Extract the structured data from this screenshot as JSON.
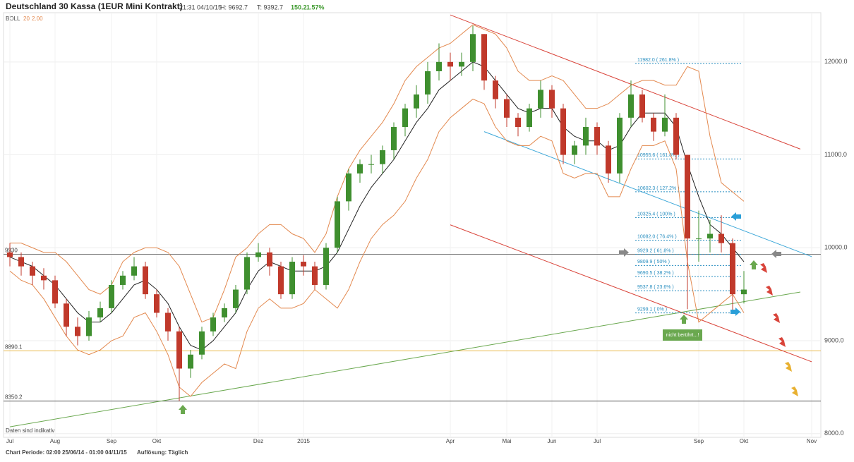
{
  "chart_data": {
    "type": "candlestick",
    "title": "Deutschland 30 Kassa (1EUR Mini Kontrakt)",
    "header": {
      "time": "21:31 04/10/15",
      "high": "H: 9692.7",
      "low": "T: 9392.7",
      "change": "150.2",
      "change_pct": "1.57%"
    },
    "footer": {
      "period": "Chart Periode: 02:00 25/06/14 - 01:00 04/11/15",
      "resolution": "Auflösung: Täglich"
    },
    "note": "Daten sind indikativ",
    "categories": [
      "Jul",
      null,
      null,
      null,
      "Aug",
      null,
      null,
      null,
      null,
      "Sep",
      null,
      null,
      null,
      "Okt",
      null,
      null,
      null,
      null,
      null,
      null,
      null,
      null,
      "Dez",
      null,
      null,
      null,
      "2015",
      null,
      null,
      null,
      null,
      null,
      null,
      null,
      null,
      null,
      null,
      null,
      null,
      "Apr",
      null,
      null,
      null,
      null,
      "Mai",
      null,
      null,
      null,
      "Jun",
      null,
      null,
      null,
      "Jul",
      null,
      null,
      null,
      null,
      null,
      null,
      null,
      null,
      "Sep",
      null,
      null,
      null,
      "Okt",
      null,
      null,
      null,
      null,
      null,
      "Nov"
    ],
    "open": [
      9950,
      9900,
      9800,
      9700,
      9650,
      9400,
      9150,
      9050,
      9250,
      9350,
      9600,
      9700,
      9800,
      9500,
      9300,
      9100,
      8700,
      8850,
      9100,
      9250,
      9350,
      9550,
      9900,
      9950,
      9800,
      9500,
      9850,
      9800,
      9600,
      10000,
      10500,
      10800,
      10900,
      10900,
      11050,
      11300,
      11500,
      11650,
      11900,
      12000,
      11950,
      12000,
      12300,
      11800,
      11600,
      11400,
      11300,
      11500,
      11700,
      11500,
      11000,
      11100,
      11300,
      11100,
      10800,
      11400,
      11650,
      11400,
      11250,
      11400,
      11000,
      10100,
      10100,
      10150,
      10050,
      9500,
      null,
      null,
      null,
      null,
      null,
      null
    ],
    "high": [
      10050,
      9950,
      9850,
      9780,
      9700,
      9450,
      9250,
      9320,
      9420,
      9650,
      9750,
      9900,
      9850,
      9550,
      9350,
      9150,
      8900,
      9150,
      9300,
      9400,
      9600,
      9950,
      10050,
      10000,
      9850,
      9900,
      9920,
      9850,
      10050,
      10550,
      10850,
      10950,
      11000,
      11100,
      11350,
      11550,
      11750,
      12000,
      12200,
      12100,
      12100,
      12390,
      12300,
      11850,
      11650,
      11450,
      11550,
      11800,
      11750,
      11550,
      11150,
      11400,
      11350,
      11150,
      11450,
      11800,
      11700,
      11450,
      11650,
      11450,
      11000,
      10400,
      10300,
      10350,
      10100,
      9750,
      null,
      null,
      null,
      null,
      null,
      null
    ],
    "low": [
      9800,
      9700,
      9600,
      9550,
      9350,
      9050,
      8950,
      9000,
      9200,
      9300,
      9550,
      9650,
      9450,
      9250,
      9000,
      8350,
      8600,
      8800,
      9050,
      9200,
      9300,
      9500,
      9850,
      9700,
      9450,
      9450,
      9700,
      9550,
      9550,
      9950,
      10400,
      10700,
      10800,
      10800,
      10950,
      11200,
      11400,
      11550,
      11800,
      11800,
      11850,
      11900,
      11700,
      11500,
      11300,
      11200,
      11250,
      11400,
      11400,
      10900,
      10900,
      11000,
      11000,
      10700,
      10700,
      11300,
      11350,
      11150,
      11200,
      10950,
      9340,
      9850,
      9950,
      9950,
      9330,
      9400,
      null,
      null,
      null,
      null,
      null,
      null
    ],
    "close": [
      9900,
      9800,
      9700,
      9650,
      9400,
      9150,
      9050,
      9250,
      9350,
      9600,
      9700,
      9800,
      9500,
      9300,
      9100,
      8700,
      8850,
      9100,
      9250,
      9350,
      9550,
      9900,
      9950,
      9800,
      9500,
      9850,
      9800,
      9600,
      10000,
      10500,
      10800,
      10900,
      10900,
      11050,
      11300,
      11500,
      11650,
      11900,
      12000,
      11950,
      12000,
      12300,
      11800,
      11600,
      11400,
      11300,
      11500,
      11700,
      11500,
      11000,
      11100,
      11300,
      11100,
      10800,
      11400,
      11650,
      11400,
      11250,
      11400,
      11000,
      10100,
      10100,
      10150,
      10050,
      9500,
      9550,
      null,
      null,
      null,
      null,
      null,
      null
    ],
    "up_color": "#3f8f2f",
    "down_color": "#c0392b",
    "bollinger": {
      "label": "BOLL",
      "period": 20,
      "deviation": "2.00",
      "band_color": "#e3894f",
      "middle_color": "#222222",
      "upper": [
        10050,
        10050,
        10000,
        9950,
        9950,
        9850,
        9700,
        9550,
        9500,
        9600,
        9850,
        9950,
        10000,
        10000,
        9950,
        9800,
        9500,
        9200,
        9250,
        9550,
        9900,
        10000,
        10150,
        10250,
        10250,
        10150,
        10100,
        9950,
        10150,
        10550,
        10850,
        11050,
        11200,
        11350,
        11550,
        11800,
        11950,
        12050,
        12150,
        12200,
        12300,
        12400,
        12350,
        12300,
        12150,
        11900,
        11800,
        11800,
        11850,
        11800,
        11650,
        11500,
        11500,
        11550,
        11650,
        11750,
        11800,
        11800,
        11750,
        11750,
        11950,
        11900,
        11200,
        10700,
        10600,
        10500,
        null,
        null,
        null,
        null,
        null,
        null
      ],
      "middle": [
        9900,
        9850,
        9800,
        9700,
        9600,
        9450,
        9300,
        9200,
        9200,
        9300,
        9450,
        9600,
        9650,
        9550,
        9400,
        9150,
        8950,
        8900,
        9000,
        9150,
        9300,
        9550,
        9750,
        9850,
        9800,
        9750,
        9750,
        9750,
        9800,
        9950,
        10200,
        10450,
        10650,
        10800,
        10950,
        11150,
        11350,
        11500,
        11700,
        11800,
        11900,
        12000,
        11950,
        11800,
        11650,
        11500,
        11450,
        11500,
        11500,
        11300,
        11200,
        11150,
        11150,
        11050,
        11100,
        11300,
        11450,
        11450,
        11450,
        11300,
        10900,
        10550,
        10250,
        10150,
        10000,
        9850,
        null,
        null,
        null,
        null,
        null,
        null
      ],
      "lower": [
        9750,
        9650,
        9600,
        9450,
        9250,
        9050,
        8900,
        8850,
        8900,
        9000,
        9050,
        9250,
        9300,
        9100,
        8850,
        8500,
        8400,
        8550,
        8650,
        8750,
        8700,
        9100,
        9350,
        9450,
        9350,
        9350,
        9400,
        9550,
        9450,
        9350,
        9550,
        9850,
        10100,
        10250,
        10350,
        10500,
        10750,
        10950,
        11250,
        11400,
        11500,
        11600,
        11550,
        11300,
        11150,
        11100,
        11100,
        11200,
        11150,
        10800,
        10750,
        10800,
        10800,
        10550,
        10550,
        10850,
        11100,
        11100,
        11150,
        10850,
        9850,
        9200,
        9300,
        9400,
        9500,
        9300,
        null,
        null,
        null,
        null,
        null,
        null
      ]
    },
    "ylim": [
      7960,
      12530
    ],
    "yticks": [
      {
        "value": 8000,
        "label": "8000.0"
      },
      {
        "value": 9000,
        "label": "9000.0"
      },
      {
        "value": 10000,
        "label": "10000.0"
      },
      {
        "value": 11000,
        "label": "11000.0"
      },
      {
        "value": 12000,
        "label": "12000.0"
      }
    ],
    "levels": [
      {
        "value": 9930,
        "label": "9930",
        "color": "#777777"
      },
      {
        "value": 8890.1,
        "label": "8890.1",
        "color": "#e8b84a"
      },
      {
        "value": 8350.2,
        "label": "8350.2",
        "color": "#555555"
      }
    ],
    "fib_color": "#2a8fc0",
    "fib_levels": [
      {
        "value": 11982.0,
        "label": "11982.0 ( 261.8% )"
      },
      {
        "value": 10955.6,
        "label": "10955.6 ( 161.8% )"
      },
      {
        "value": 10602.3,
        "label": "10602.3 ( 127.2% )"
      },
      {
        "value": 10325.4,
        "label": "10325.4 ( 100% )"
      },
      {
        "value": 10082.0,
        "label": "10082.0 ( 76.4% )"
      },
      {
        "value": 9929.2,
        "label": "9929.2 ( 61.8% )"
      },
      {
        "value": 9809.9,
        "label": "9809.9 ( 50% )"
      },
      {
        "value": 9690.5,
        "label": "9690.5 ( 38.2% )"
      },
      {
        "value": 9537.8,
        "label": "9537.8 ( 23.6% )"
      },
      {
        "value": 9299.1,
        "label": "9299.1 ( 0% )"
      }
    ],
    "trend_lines": [
      {
        "x": [
          39,
          70
        ],
        "values": [
          12506,
          11062
        ],
        "color": "#d9443a"
      },
      {
        "x": [
          39,
          71
        ],
        "values": [
          10247,
          8773
        ],
        "color": "#d9443a"
      },
      {
        "x": [
          42,
          71
        ],
        "values": [
          11250,
          9905
        ],
        "color": "#3aa6d8"
      },
      {
        "x": [
          0,
          70
        ],
        "values": [
          8073,
          9524
        ],
        "color": "#6aa84f"
      }
    ],
    "annotation": "nicht berührt...!"
  }
}
